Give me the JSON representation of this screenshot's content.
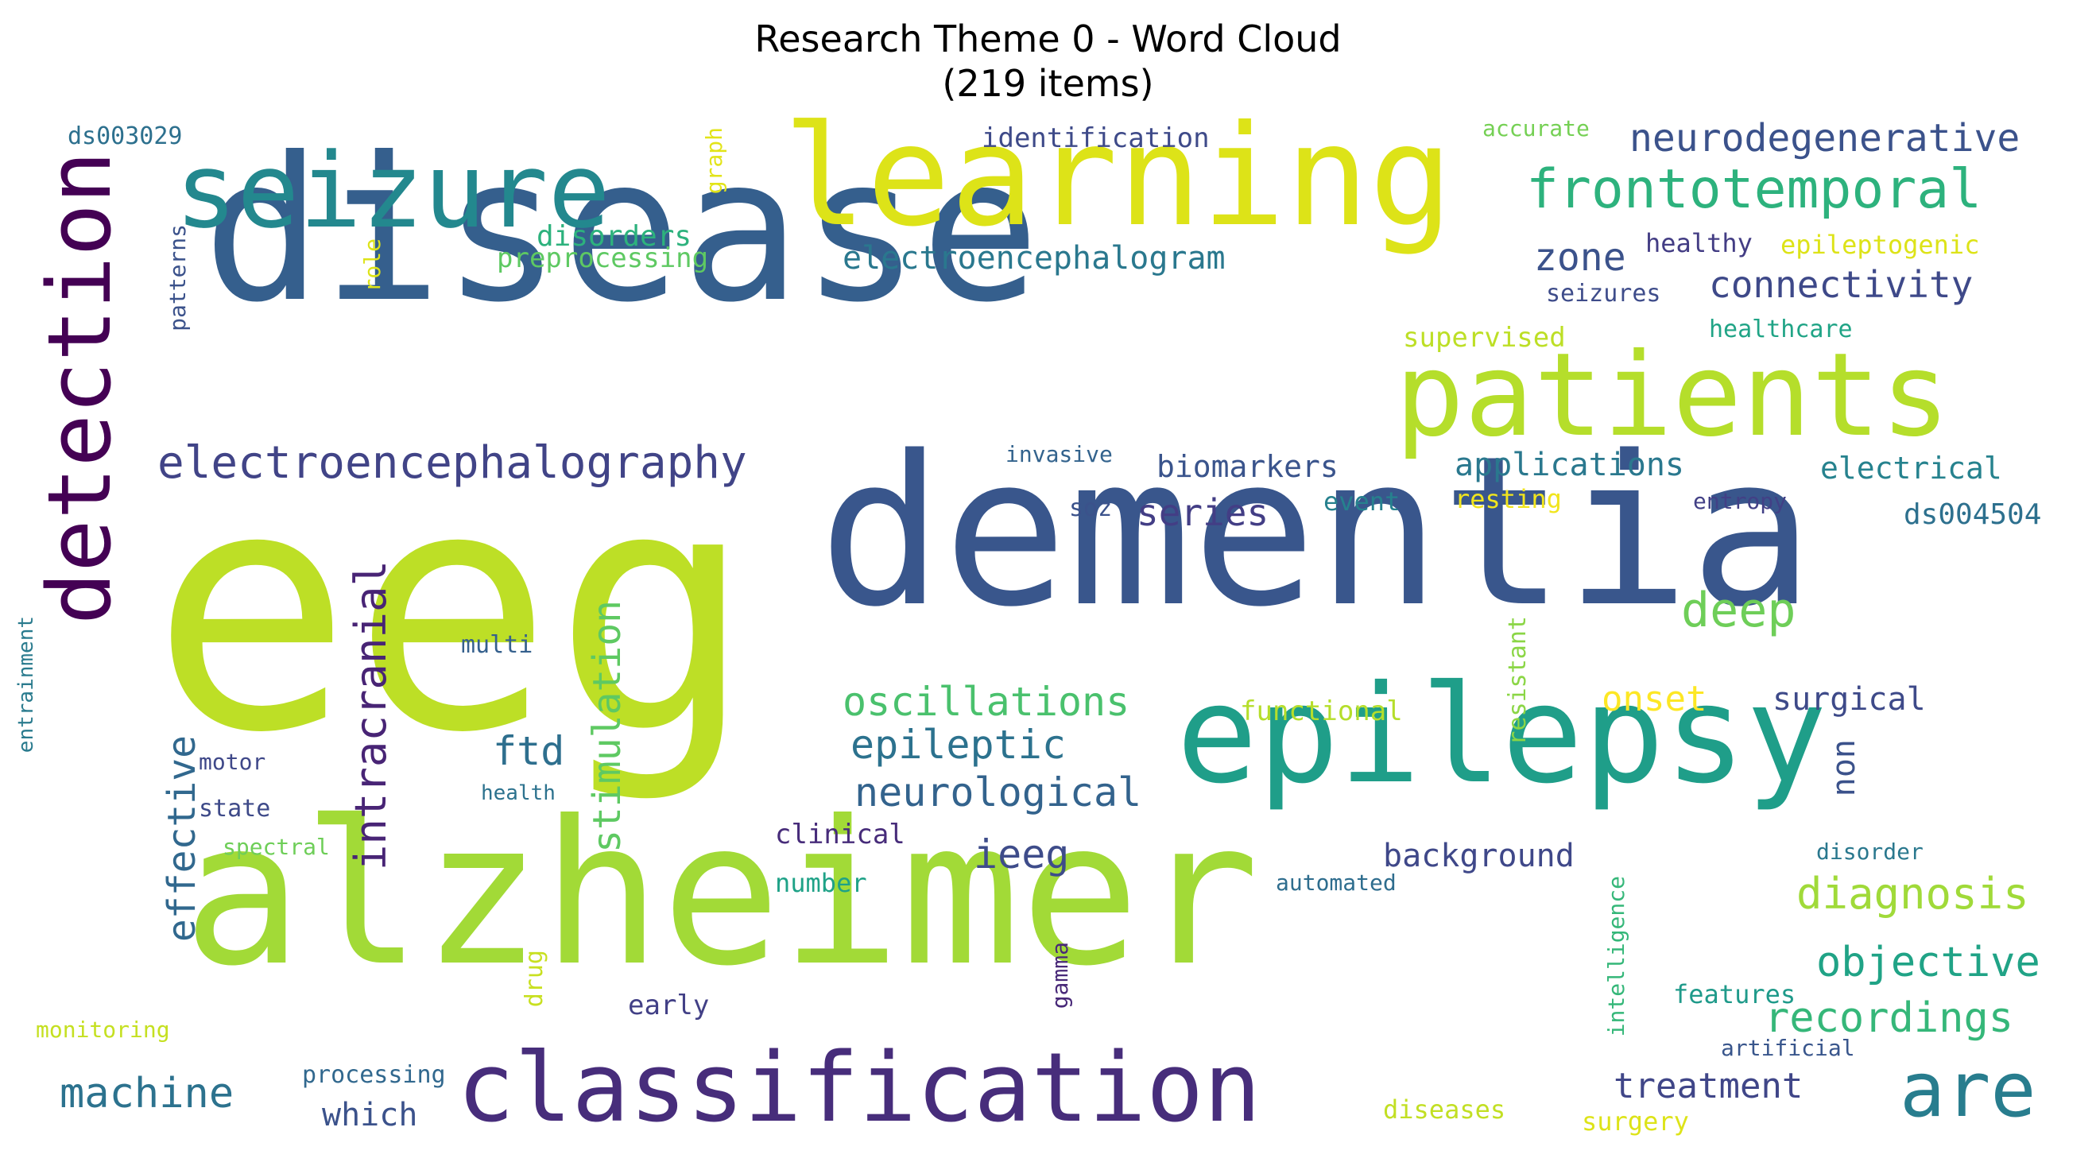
{
  "title_line1": "Research Theme 0 - Word Cloud",
  "title_line2": "(219 items)",
  "words": [
    {
      "text": "eeg",
      "color": "#bddf26"
    },
    {
      "text": "disease",
      "color": "#355f8d"
    },
    {
      "text": "dementia",
      "color": "#39568c"
    },
    {
      "text": "alzheimer",
      "color": "#a2da37"
    },
    {
      "text": "epilepsy",
      "color": "#1f9e89"
    },
    {
      "text": "learning",
      "color": "#dde318"
    },
    {
      "text": "seizure",
      "color": "#23888e"
    },
    {
      "text": "patients",
      "color": "#b5de2b"
    },
    {
      "text": "detection",
      "color": "#440154"
    },
    {
      "text": "classification",
      "color": "#472d7b"
    },
    {
      "text": "are",
      "color": "#287d8e"
    },
    {
      "text": "frontotemporal",
      "color": "#2db27d"
    },
    {
      "text": "electroencephalography",
      "color": "#414487"
    },
    {
      "text": "neurodegenerative",
      "color": "#3b528b"
    },
    {
      "text": "connectivity",
      "color": "#3e4989"
    },
    {
      "text": "electroencephalogram",
      "color": "#2a788e"
    },
    {
      "text": "zone",
      "color": "#3b528b"
    },
    {
      "text": "series",
      "color": "#433e85"
    },
    {
      "text": "deep",
      "color": "#6ece58"
    },
    {
      "text": "oscillations",
      "color": "#4ac16d"
    },
    {
      "text": "epileptic",
      "color": "#2c728e"
    },
    {
      "text": "neurological",
      "color": "#33638d"
    },
    {
      "text": "diagnosis",
      "color": "#a0da39"
    },
    {
      "text": "objective",
      "color": "#20a386"
    },
    {
      "text": "recordings",
      "color": "#35b779"
    },
    {
      "text": "treatment",
      "color": "#404688"
    },
    {
      "text": "intracranial",
      "color": "#482475"
    },
    {
      "text": "stimulation",
      "color": "#5ec962"
    },
    {
      "text": "effective",
      "color": "#31688e"
    },
    {
      "text": "ftd",
      "color": "#2e6f8e"
    },
    {
      "text": "machine",
      "color": "#2c728e"
    },
    {
      "text": "ieeg",
      "color": "#3e4c8a"
    },
    {
      "text": "onset",
      "color": "#fde725"
    },
    {
      "text": "non",
      "color": "#3b528b"
    },
    {
      "text": "surgical",
      "color": "#3e4a89"
    },
    {
      "text": "background",
      "color": "#3f4889"
    },
    {
      "text": "applications",
      "color": "#2a788e"
    },
    {
      "text": "biomarkers",
      "color": "#3a548c"
    },
    {
      "text": "electrical",
      "color": "#26828e"
    },
    {
      "text": "ds004504",
      "color": "#2d708e"
    },
    {
      "text": "which",
      "color": "#3b528b"
    },
    {
      "text": "identification",
      "color": "#3e4a89"
    },
    {
      "text": "disorders",
      "color": "#2db27d"
    },
    {
      "text": "preprocessing",
      "color": "#5ec962"
    },
    {
      "text": "accurate",
      "color": "#75d054"
    },
    {
      "text": "healthy",
      "color": "#433d84"
    },
    {
      "text": "epileptogenic",
      "color": "#dde318"
    },
    {
      "text": "seizures",
      "color": "#3e4c8a"
    },
    {
      "text": "healthcare",
      "color": "#20a486"
    },
    {
      "text": "supervised",
      "color": "#bddf26"
    },
    {
      "text": "invasive",
      "color": "#33638d"
    },
    {
      "text": "soz",
      "color": "#3b528b"
    },
    {
      "text": "event",
      "color": "#26818e"
    },
    {
      "text": "resting",
      "color": "#f1e51d"
    },
    {
      "text": "entropy",
      "color": "#424086"
    },
    {
      "text": "functional",
      "color": "#b5de2b"
    },
    {
      "text": "multi",
      "color": "#35608d"
    },
    {
      "text": "clinical",
      "color": "#472c7a"
    },
    {
      "text": "number",
      "color": "#1fa287"
    },
    {
      "text": "automated",
      "color": "#2e6d8e"
    },
    {
      "text": "disorder",
      "color": "#2a788e"
    },
    {
      "text": "early",
      "color": "#424086"
    },
    {
      "text": "features",
      "color": "#1f9a8a"
    },
    {
      "text": "artificial",
      "color": "#39568c"
    },
    {
      "text": "surgery",
      "color": "#dde318"
    },
    {
      "text": "diseases",
      "color": "#c2df23"
    },
    {
      "text": "processing",
      "color": "#31688e"
    },
    {
      "text": "monitoring",
      "color": "#c5e021"
    },
    {
      "text": "motor",
      "color": "#3f4889"
    },
    {
      "text": "state",
      "color": "#3e4a89"
    },
    {
      "text": "spectral",
      "color": "#6ece58"
    },
    {
      "text": "health",
      "color": "#2c728e"
    },
    {
      "text": "ds003029",
      "color": "#2d708e"
    },
    {
      "text": "graph",
      "color": "#e2e418"
    },
    {
      "text": "role",
      "color": "#dde318"
    },
    {
      "text": "patterns",
      "color": "#3b528b"
    },
    {
      "text": "entrainment",
      "color": "#2a7b8e"
    },
    {
      "text": "drug",
      "color": "#c8e020"
    },
    {
      "text": "gamma",
      "color": "#482878"
    },
    {
      "text": "intelligence",
      "color": "#35b779"
    },
    {
      "text": "resistant",
      "color": "#8bd646"
    }
  ]
}
